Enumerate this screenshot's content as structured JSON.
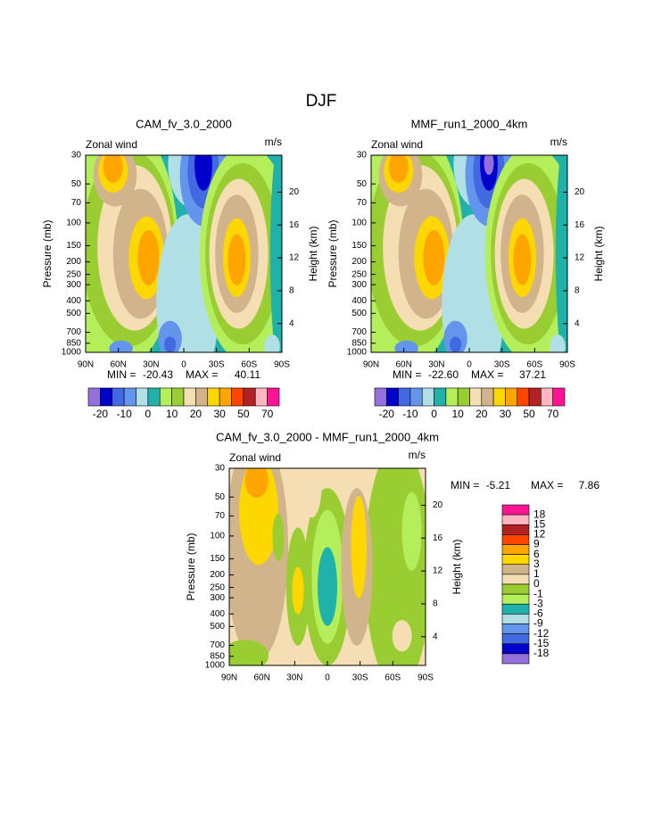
{
  "title": "DJF",
  "chart_data": [
    {
      "type": "contour",
      "title": "CAM_fv_3.0_2000",
      "label": "Zonal wind",
      "units": "m/s",
      "ylabel": "Pressure (mb)",
      "y2label": "Height (km)",
      "log_y": true,
      "ylim": [
        1000,
        30
      ],
      "yticks": [
        30,
        50,
        70,
        100,
        150,
        200,
        250,
        300,
        400,
        500,
        700,
        850,
        1000
      ],
      "y2lim": [
        0.5,
        24.5
      ],
      "y2ticks": [
        4,
        8,
        12,
        16,
        20
      ],
      "xlim": [
        90,
        -90
      ],
      "xticks": [
        {
          "value": 90,
          "label": "90N"
        },
        {
          "value": 60,
          "label": "60N"
        },
        {
          "value": 30,
          "label": "30N"
        },
        0,
        {
          "value": -30,
          "label": "30S"
        },
        {
          "value": -60,
          "label": "60S"
        },
        {
          "value": -90,
          "label": "90S"
        }
      ],
      "min_label": "MIN =",
      "min": -20.43,
      "max_label": "MAX =",
      "max": 40.11,
      "colorbar": {
        "orientation": "horizontal",
        "colors": [
          "#9370db",
          "#0000cd",
          "#4169e1",
          "#6495ed",
          "#b0e0e6",
          "#20b2aa",
          "#b4ee5a",
          "#9acd32",
          "#f5deb3",
          "#d2b48c",
          "#ffd700",
          "#ffa500",
          "#ff4500",
          "#b22222",
          "#ffb6c1",
          "#ff1493"
        ],
        "labels": [
          -20,
          -10,
          0,
          10,
          20,
          30,
          50,
          70
        ]
      }
    },
    {
      "type": "contour",
      "title": "MMF_run1_2000_4km",
      "label": "Zonal wind",
      "units": "m/s",
      "ylabel": "Pressure (mb)",
      "y2label": "Height (km)",
      "log_y": true,
      "ylim": [
        1000,
        30
      ],
      "yticks": [
        30,
        50,
        70,
        100,
        150,
        200,
        250,
        300,
        400,
        500,
        700,
        850,
        1000
      ],
      "y2lim": [
        0.5,
        24.5
      ],
      "y2ticks": [
        4,
        8,
        12,
        16,
        20
      ],
      "xlim": [
        90,
        -90
      ],
      "xticks": [
        {
          "value": 90,
          "label": "90N"
        },
        {
          "value": 60,
          "label": "60N"
        },
        {
          "value": 30,
          "label": "30N"
        },
        0,
        {
          "value": -30,
          "label": "30S"
        },
        {
          "value": -60,
          "label": "60S"
        },
        {
          "value": -90,
          "label": "90S"
        }
      ],
      "min_label": "MIN =",
      "min": {
        "value": -22.6,
        "label": "-22.60"
      },
      "max_label": "MAX =",
      "max": 37.21,
      "colorbar": {
        "orientation": "horizontal",
        "colors": [
          "#9370db",
          "#0000cd",
          "#4169e1",
          "#6495ed",
          "#b0e0e6",
          "#20b2aa",
          "#b4ee5a",
          "#9acd32",
          "#f5deb3",
          "#d2b48c",
          "#ffd700",
          "#ffa500",
          "#ff4500",
          "#b22222",
          "#ffb6c1",
          "#ff1493"
        ],
        "labels": [
          -20,
          -10,
          0,
          10,
          20,
          30,
          50,
          70
        ]
      }
    },
    {
      "type": "contour",
      "title": "CAM_fv_3.0_2000 - MMF_run1_2000_4km",
      "label": "Zonal wind",
      "units": "m/s",
      "ylabel": "Pressure (mb)",
      "y2label": "Height (km)",
      "log_y": true,
      "ylim": [
        1000,
        30
      ],
      "yticks": [
        30,
        50,
        70,
        100,
        150,
        200,
        250,
        300,
        400,
        500,
        700,
        850,
        1000
      ],
      "y2lim": [
        0.5,
        24.5
      ],
      "y2ticks": [
        4,
        8,
        12,
        16,
        20
      ],
      "xlim": [
        90,
        -90
      ],
      "xticks": [
        {
          "value": 90,
          "label": "90N"
        },
        {
          "value": 60,
          "label": "60N"
        },
        {
          "value": 30,
          "label": "30N"
        },
        0,
        {
          "value": -30,
          "label": "30S"
        },
        {
          "value": -60,
          "label": "60S"
        },
        {
          "value": -90,
          "label": "90S"
        }
      ],
      "min_label": "MIN =",
      "min": -5.21,
      "max_label": "MAX =",
      "max": 7.86,
      "colorbar": {
        "orientation": "vertical",
        "colors": [
          "#ff1493",
          "#ffb6c1",
          "#b22222",
          "#ff4500",
          "#ffa500",
          "#ffd700",
          "#d2b48c",
          "#f5deb3",
          "#9acd32",
          "#b4ee5a",
          "#20b2aa",
          "#b0e0e6",
          "#6495ed",
          "#4169e1",
          "#0000cd",
          "#9370db"
        ],
        "labels": [
          18,
          15,
          12,
          9,
          6,
          3,
          1,
          0,
          -1,
          -3,
          -6,
          -9,
          -12,
          -15,
          -18
        ]
      }
    }
  ]
}
